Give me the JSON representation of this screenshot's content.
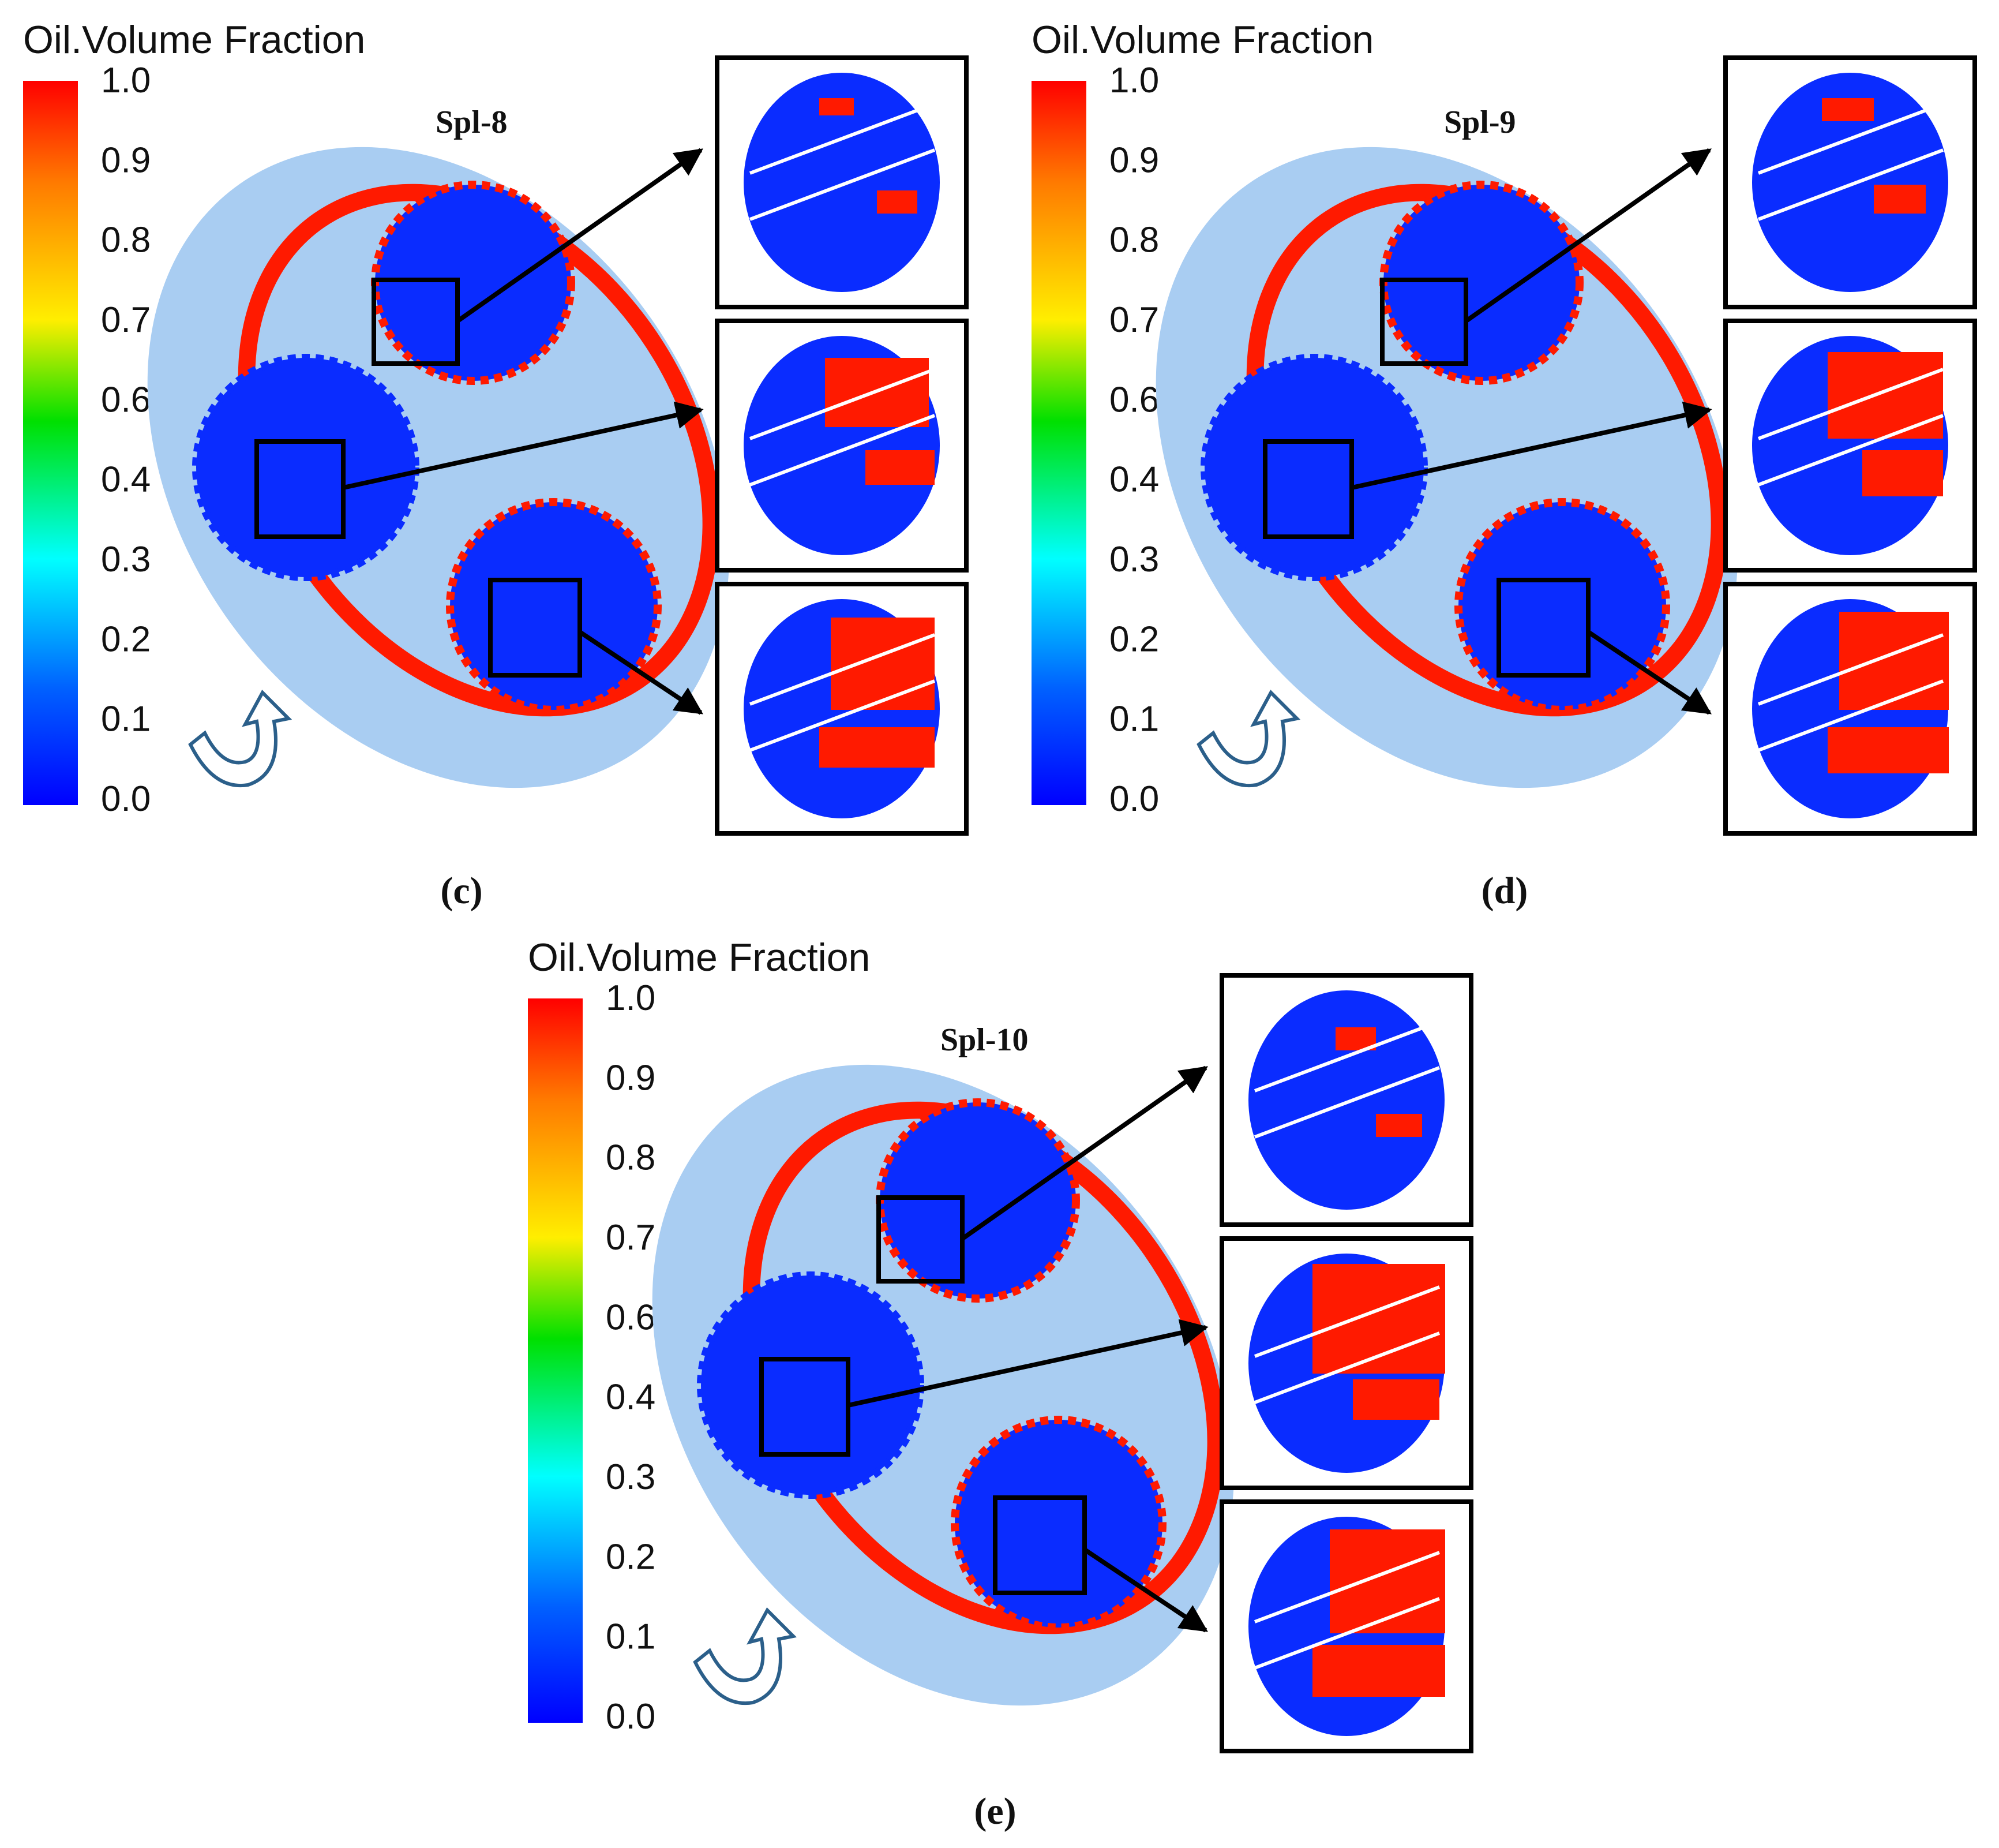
{
  "colorbar": {
    "title": "Oil.Volume Fraction",
    "ticks": [
      "1.0",
      "0.9",
      "0.8",
      "0.7",
      "0.6",
      "0.4",
      "0.3",
      "0.2",
      "0.1",
      "0.0"
    ],
    "colors": [
      "#ff0000",
      "#ff7a00",
      "#ffee00",
      "#00e000",
      "#00ffff",
      "#0060ff",
      "#0000ff"
    ]
  },
  "panels": [
    {
      "case_label": "Spl-8",
      "caption": "(c)",
      "oil_level": "low"
    },
    {
      "case_label": "Spl-9",
      "caption": "(d)",
      "oil_level": "medium"
    },
    {
      "case_label": "Spl-10",
      "caption": "(e)",
      "oil_level": "high"
    }
  ],
  "colors": {
    "housing": "#a9cdf2",
    "oil_high": "#ff1a00",
    "oil_low": "#0a2cff",
    "arrow": "#000000",
    "rotation_arrow": "#2b5f8a"
  },
  "icons": [
    "rotation-arrow-icon",
    "pointer-arrow-icon"
  ]
}
